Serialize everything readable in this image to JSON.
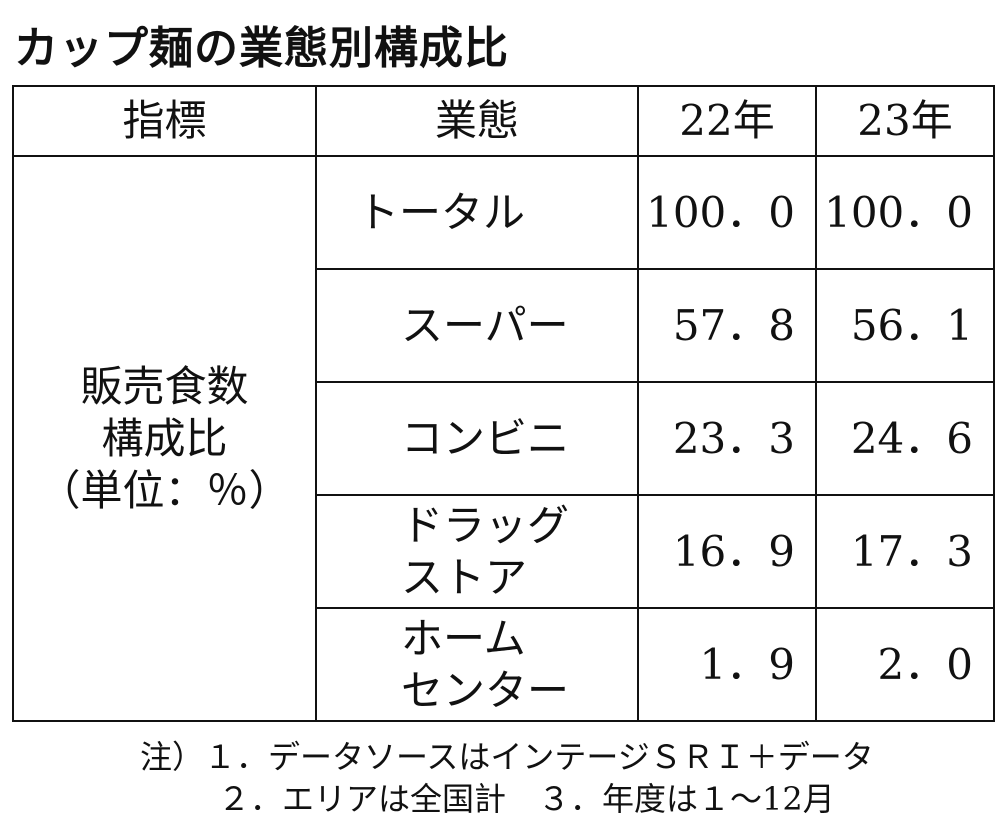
{
  "title": "カップ麺の業態別構成比",
  "table": {
    "header": [
      "指標",
      "業態",
      "22年",
      "23年"
    ],
    "indicator": [
      "販売食数",
      "構成比",
      "（単位：％）"
    ],
    "rows": [
      {
        "category": [
          "トータル"
        ],
        "values": [
          "100．0",
          "100．0"
        ]
      },
      {
        "category": [
          "スーパー"
        ],
        "values": [
          "57．8",
          "56．1"
        ]
      },
      {
        "category": [
          "コンビニ"
        ],
        "values": [
          "23．3",
          "24．6"
        ]
      },
      {
        "category": [
          "ドラッグ",
          "ストア"
        ],
        "values": [
          "16．9",
          "17．3"
        ]
      },
      {
        "category": [
          "ホーム",
          "センター"
        ],
        "values": [
          "1．9",
          "2．0"
        ]
      }
    ]
  },
  "notes": [
    "注）１．データソースはインテージＳＲＩ＋データ",
    "２．エリアは全国計　３．年度は１～12月"
  ]
}
